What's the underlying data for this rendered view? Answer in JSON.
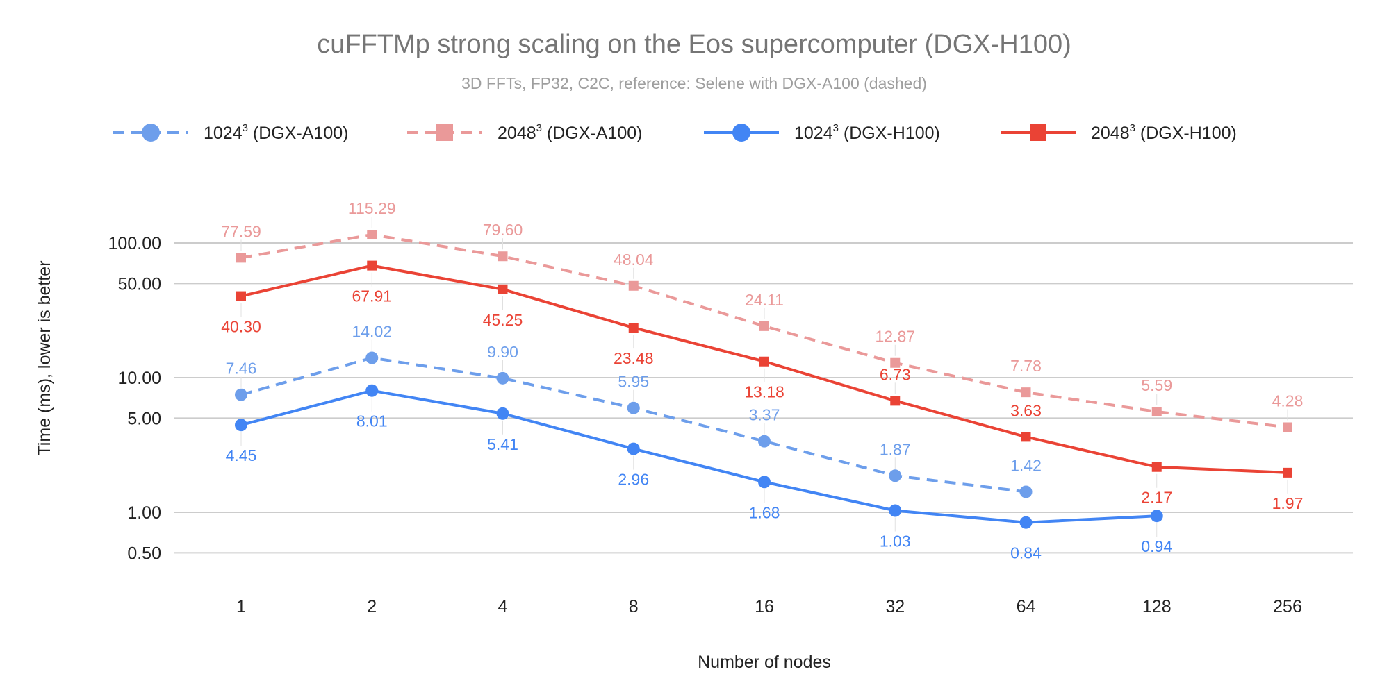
{
  "chart_data": {
    "type": "line",
    "title": "cuFFTMp strong scaling on the Eos supercomputer (DGX-H100)",
    "subtitle": "3D FFTs, FP32, C2C, reference: Selene with DGX-A100 (dashed)",
    "xlabel": "Number of nodes",
    "ylabel": "Time (ms), lower is better",
    "categories": [
      "1",
      "2",
      "4",
      "8",
      "16",
      "32",
      "64",
      "128",
      "256"
    ],
    "y_scale": "log",
    "ylim": [
      0.4,
      150
    ],
    "y_ticks": [
      0.5,
      1,
      5,
      10,
      50,
      100
    ],
    "y_tick_labels": [
      "0.50",
      "1.00",
      "5.00",
      "10.00",
      "50.00",
      "100.00"
    ],
    "grid": true,
    "legend_position": "top",
    "series": [
      {
        "name_base": "1024",
        "name_sup": "3",
        "name_rest": " (DGX-A100)",
        "color": "#6d9eeb",
        "dashed": true,
        "marker": "circle",
        "label_pos": "above",
        "values": [
          7.46,
          14.02,
          9.9,
          5.95,
          3.37,
          1.87,
          1.42,
          null,
          null
        ],
        "labels": [
          "7.46",
          "14.02",
          "9.90",
          "5.95",
          "3.37",
          "1.87",
          "1.42",
          null,
          null
        ]
      },
      {
        "name_base": "2048",
        "name_sup": "3",
        "name_rest": " (DGX-A100)",
        "color": "#ea9999",
        "dashed": true,
        "marker": "square",
        "label_pos": "above",
        "values": [
          77.59,
          115.29,
          79.6,
          48.04,
          24.11,
          12.87,
          7.78,
          5.59,
          4.28
        ],
        "labels": [
          "77.59",
          "115.29",
          "79.60",
          "48.04",
          "24.11",
          "12.87",
          "7.78",
          "5.59",
          "4.28"
        ]
      },
      {
        "name_base": "1024",
        "name_sup": "3",
        "name_rest": " (DGX-H100)",
        "color": "#4285f4",
        "dashed": false,
        "marker": "circle",
        "label_pos": "below",
        "values": [
          4.45,
          8.01,
          5.41,
          2.96,
          1.68,
          1.03,
          0.84,
          0.94,
          null
        ],
        "labels": [
          "4.45",
          "8.01",
          "5.41",
          "2.96",
          "1.68",
          "1.03",
          "0.84",
          "0.94",
          null
        ]
      },
      {
        "name_base": "2048",
        "name_sup": "3",
        "name_rest": " (DGX-H100)",
        "color": "#ea4335",
        "dashed": false,
        "marker": "square",
        "label_pos": "below",
        "values": [
          40.3,
          67.91,
          45.25,
          23.48,
          13.18,
          6.73,
          3.63,
          2.17,
          1.97
        ],
        "labels": [
          "40.30",
          "67.91",
          "45.25",
          "23.48",
          "13.18",
          "6.73",
          "3.63",
          "2.17",
          "1.97"
        ]
      }
    ]
  }
}
